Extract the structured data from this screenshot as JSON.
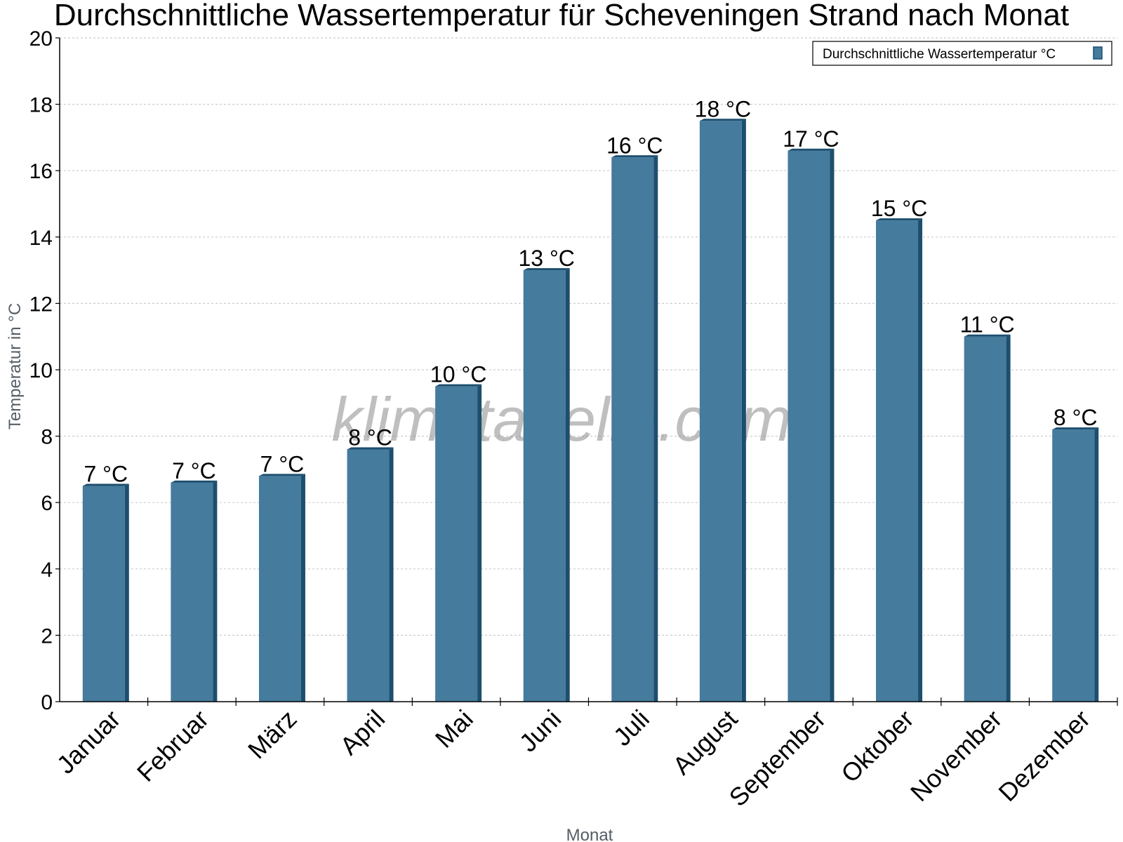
{
  "chart_data": {
    "type": "bar",
    "title": "Durchschnittliche Wassertemperatur für Scheveningen Strand nach Monat",
    "xlabel": "Monat",
    "ylabel": "Temperatur in °C",
    "categories": [
      "Januar",
      "Februar",
      "März",
      "April",
      "Mai",
      "Juni",
      "Juli",
      "August",
      "September",
      "Oktober",
      "November",
      "Dezember"
    ],
    "series": [
      {
        "name": "Durchschnittliche Wassertemperatur °C",
        "values": [
          6.5,
          6.6,
          6.8,
          7.6,
          9.5,
          13.0,
          16.4,
          17.5,
          16.6,
          14.5,
          11.0,
          8.2
        ],
        "labels": [
          "7 °C",
          "7 °C",
          "7 °C",
          "8 °C",
          "10 °C",
          "13 °C",
          "16 °C",
          "18 °C",
          "17 °C",
          "15 °C",
          "11 °C",
          "8 °C"
        ],
        "color": "#457b9d"
      }
    ],
    "ylim": [
      0,
      20
    ],
    "yticks": [
      0,
      2,
      4,
      6,
      8,
      10,
      12,
      14,
      16,
      18,
      20
    ],
    "grid": true,
    "legend": "top-right"
  },
  "watermark": "klimatabelle.com",
  "colors": {
    "bar_front": "#457b9d",
    "bar_side": "#1d4e6e",
    "grid": "#cccccc",
    "axis": "#000000"
  }
}
